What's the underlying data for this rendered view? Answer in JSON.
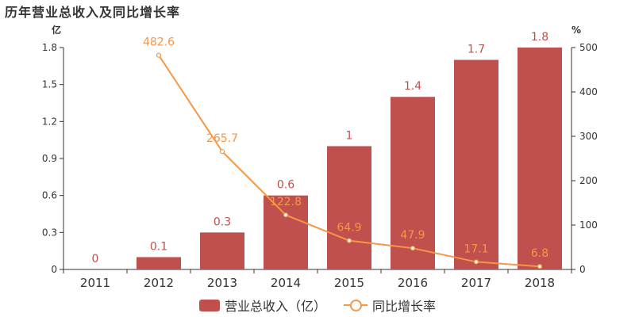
{
  "title": "历年营业总收入及同比增长率",
  "chart_data": {
    "type": "bar",
    "categories": [
      "2011",
      "2012",
      "2013",
      "2014",
      "2015",
      "2016",
      "2017",
      "2018"
    ],
    "y_left": {
      "unit_label": "亿",
      "min": 0,
      "max": 1.8,
      "ticks": [
        0,
        0.3,
        0.6,
        0.9,
        1.2,
        1.5,
        1.8
      ]
    },
    "y_right": {
      "unit_label": "%",
      "min": 0,
      "max": 500,
      "ticks": [
        0,
        100,
        200,
        300,
        400,
        500
      ]
    },
    "series": [
      {
        "name": "营业总收入（亿）",
        "type": "bar",
        "axis": "left",
        "color": "#C0504D",
        "values": [
          0,
          0.1,
          0.3,
          0.6,
          1,
          1.4,
          1.7,
          1.8
        ],
        "labels": [
          "0",
          "0.1",
          "0.3",
          "0.6",
          "1",
          "1.4",
          "1.7",
          "1.8"
        ]
      },
      {
        "name": "同比增长率",
        "type": "line",
        "axis": "right",
        "color": "#F79646",
        "values": [
          null,
          482.6,
          265.7,
          122.8,
          64.9,
          47.9,
          17.1,
          6.8
        ],
        "labels": [
          "",
          "482.6",
          "265.7",
          "122.8",
          "64.9",
          "47.9",
          "17.1",
          "6.8"
        ]
      }
    ],
    "legend_position": "bottom-center",
    "grid": false
  }
}
